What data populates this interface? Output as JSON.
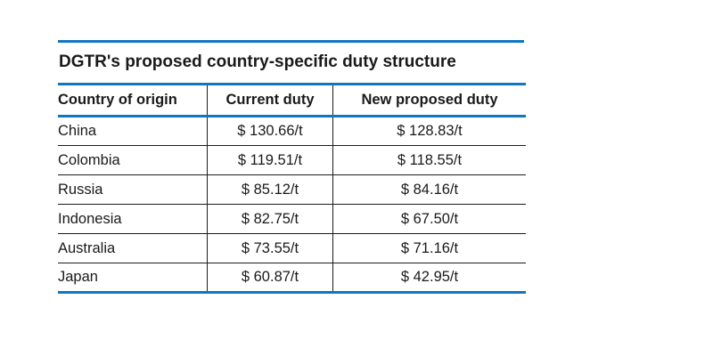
{
  "colors": {
    "accent_blue": "#0f76bf",
    "line_black": "#1b1b1b",
    "text": "#1a1a1a",
    "background": "#ffffff"
  },
  "title": "DGTR's proposed country-specific duty structure",
  "table": {
    "columns": [
      "Country of origin",
      "Current duty",
      "New proposed duty"
    ],
    "rows": [
      {
        "country": "China",
        "current_duty": "$ 130.66/t",
        "new_proposed_duty": "$ 128.83/t"
      },
      {
        "country": "Colombia",
        "current_duty": "$ 119.51/t",
        "new_proposed_duty": "$ 118.55/t"
      },
      {
        "country": "Russia",
        "current_duty": "$ 85.12/t",
        "new_proposed_duty": "$ 84.16/t"
      },
      {
        "country": "Indonesia",
        "current_duty": "$ 82.75/t",
        "new_proposed_duty": "$ 67.50/t"
      },
      {
        "country": "Australia",
        "current_duty": "$ 73.55/t",
        "new_proposed_duty": "$ 71.16/t"
      },
      {
        "country": "Japan",
        "current_duty": "$ 60.87/t",
        "new_proposed_duty": "$ 42.95/t"
      }
    ]
  },
  "chart_data": {
    "type": "table",
    "title": "DGTR's proposed country-specific duty structure",
    "columns": [
      "Country of origin",
      "Current duty",
      "New proposed duty"
    ],
    "categories": [
      "China",
      "Colombia",
      "Russia",
      "Indonesia",
      "Australia",
      "Japan"
    ],
    "series": [
      {
        "name": "Current duty ($/t)",
        "values": [
          130.66,
          119.51,
          85.12,
          82.75,
          73.55,
          60.87
        ]
      },
      {
        "name": "New proposed duty ($/t)",
        "values": [
          128.83,
          118.55,
          84.16,
          67.5,
          71.16,
          42.95
        ]
      }
    ],
    "unit": "$/t"
  }
}
